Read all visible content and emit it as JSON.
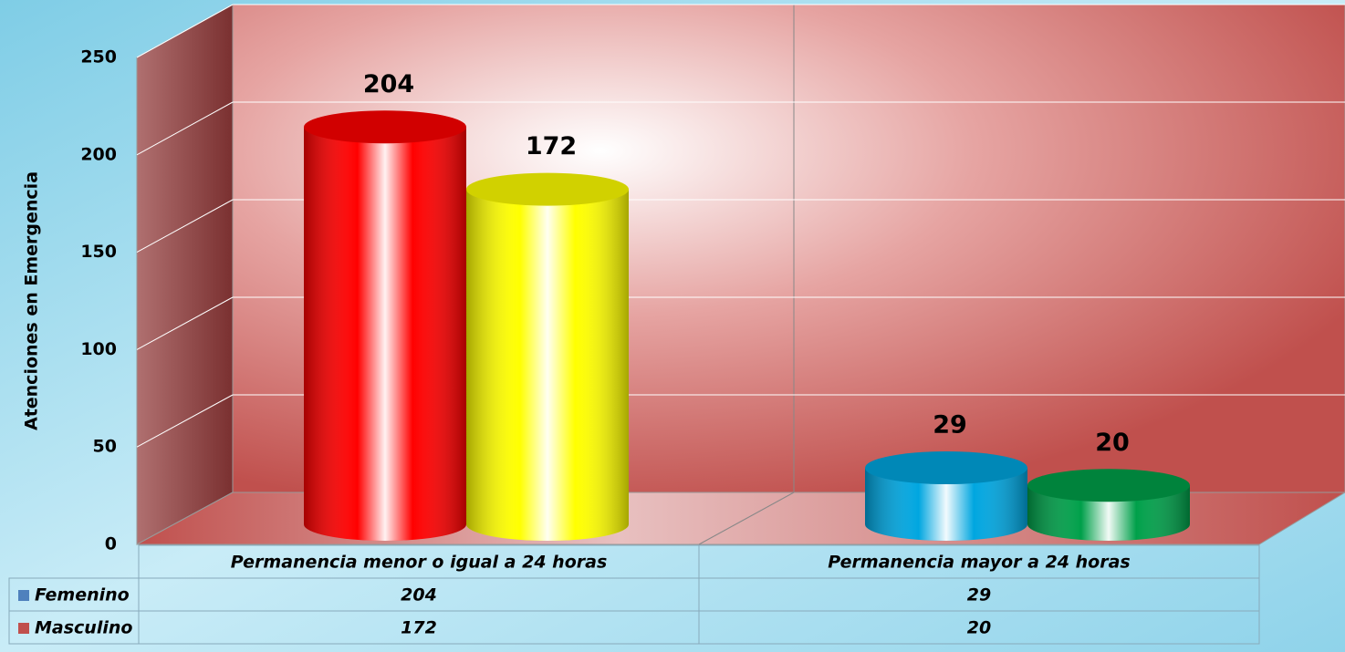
{
  "chart_data": {
    "type": "bar3d",
    "y_label": "Atenciones en Emergencia",
    "categories": [
      "Permanencia menor o igual a 24 horas",
      "Permanencia mayor a 24 horas"
    ],
    "series": [
      {
        "name": "Femenino",
        "color": "#4f81bd",
        "bar_colors": [
          "#ff0000",
          "#00a6e0"
        ],
        "values": [
          204,
          29
        ]
      },
      {
        "name": "Masculino",
        "color": "#c0504d",
        "bar_colors": [
          "#ffff00",
          "#00a04a"
        ],
        "values": [
          172,
          20
        ]
      }
    ],
    "ylim": [
      0,
      250
    ],
    "yticks": [
      0,
      50,
      100,
      150,
      200,
      250
    ],
    "grid": true
  }
}
